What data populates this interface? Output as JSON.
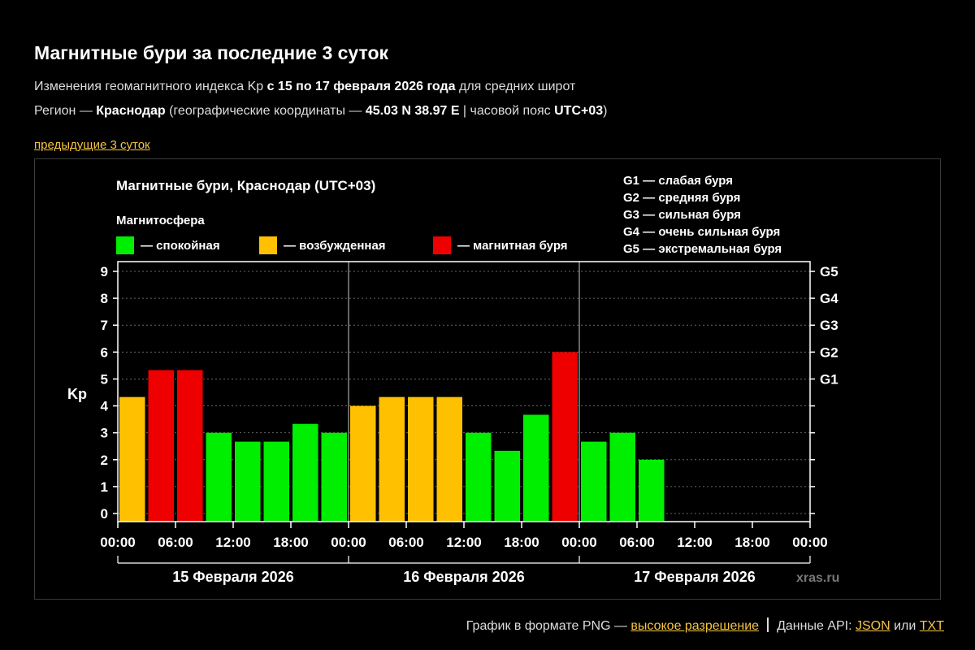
{
  "header": {
    "title": "Магнитные бури за последние 3 суток",
    "line1_pre": "Изменения геомагнитного индекса Kp ",
    "line1_bold": "с 15 по 17 февраля 2026 года",
    "line1_post": " для средних широт",
    "line2_pre": "Регион — ",
    "line2_region": "Краснодар",
    "line2_mid": " (географические координаты — ",
    "line2_coords": "45.03 N 38.97 E",
    "line2_sep": " | часовой пояс ",
    "line2_tz": "UTC+03",
    "line2_post": ")",
    "prev_link": "предыдущие 3 суток"
  },
  "chart_data": {
    "type": "bar",
    "title": "Магнитные бури, Краснодар (UTC+03)",
    "legend_title": "Магнитосфера",
    "legend": [
      {
        "label": "— спокойная",
        "color": "#00ee00"
      },
      {
        "label": "— возбужденная",
        "color": "#ffc000"
      },
      {
        "label": "— магнитная буря",
        "color": "#ee0000"
      }
    ],
    "storm_levels": [
      "G1 — слабая буря",
      "G2 — средняя буря",
      "G3 — сильная буря",
      "G4 — очень сильная буря",
      "G5 — экстремальная буря"
    ],
    "ylabel": "Kp",
    "ylim": [
      0,
      9
    ],
    "y_ticks": [
      "0",
      "1",
      "2",
      "3",
      "4",
      "5",
      "6",
      "7",
      "8",
      "9"
    ],
    "g_ticks": [
      {
        "label": "G1",
        "value": 5
      },
      {
        "label": "G2",
        "value": 6
      },
      {
        "label": "G3",
        "value": 7
      },
      {
        "label": "G4",
        "value": 8
      },
      {
        "label": "G5",
        "value": 9
      }
    ],
    "x_ticks": [
      "00:00",
      "06:00",
      "12:00",
      "18:00",
      "00:00",
      "06:00",
      "12:00",
      "18:00",
      "00:00",
      "06:00",
      "12:00",
      "18:00",
      "00:00"
    ],
    "days": [
      "15 Февраля 2026",
      "16 Февраля 2026",
      "17 Февраля 2026"
    ],
    "slots": 24,
    "values": [
      4.33,
      5.33,
      5.33,
      3.0,
      2.67,
      2.67,
      3.33,
      3.0,
      4.0,
      4.33,
      4.33,
      4.33,
      3.0,
      2.33,
      3.67,
      6.0,
      2.67,
      3.0,
      2.0
    ],
    "status": [
      "excited",
      "storm",
      "storm",
      "quiet",
      "quiet",
      "quiet",
      "quiet",
      "quiet",
      "excited",
      "excited",
      "excited",
      "excited",
      "quiet",
      "quiet",
      "quiet",
      "storm",
      "quiet",
      "quiet",
      "quiet"
    ],
    "status_colors": {
      "quiet": "#00ee00",
      "excited": "#ffc000",
      "storm": "#ee0000"
    },
    "grid": true,
    "watermark": "xras.ru"
  },
  "footer": {
    "png_label": "График в формате PNG — ",
    "hires_link": "высокое разрешение",
    "api_label": "Данные API: ",
    "json_link": "JSON",
    "or_label": " или ",
    "txt_link": "TXT"
  }
}
